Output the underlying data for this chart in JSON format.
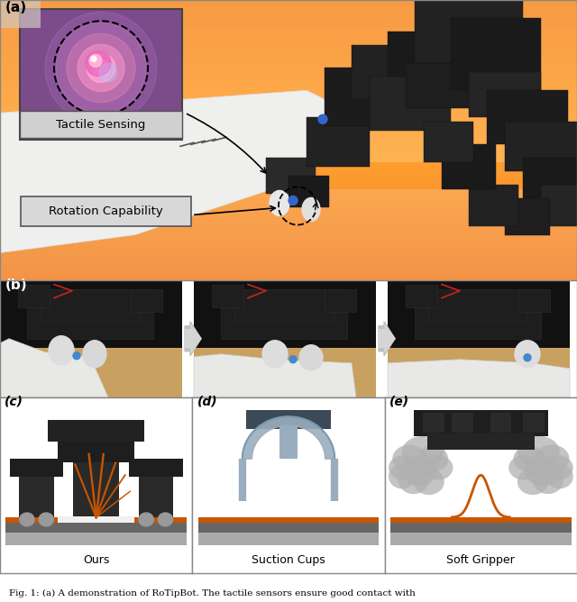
{
  "fig_width": 6.4,
  "fig_height": 6.68,
  "dpi": 100,
  "caption": "Fig. 1: (a) A demonstration of RoTipBot. The tactile sensors ensure good contact with",
  "panel_labels": [
    "(a)",
    "(b)",
    "(c)",
    "(d)",
    "(e)"
  ],
  "panel_c_label": "Ours",
  "panel_d_label": "Suction Cups",
  "panel_e_label": "Soft Gripper",
  "tactile_label": "Tactile Sensing",
  "rotation_label": "Rotation Capability",
  "orange": "#c85500",
  "dark": "#1a1a1a",
  "dark2": "#2a2a2a",
  "dark3": "#333333",
  "gray1": "#555555",
  "gray2": "#777777",
  "gray3": "#999999",
  "gray4": "#bbbbbb",
  "lightgray": "#cccccc",
  "tan": "#c8a878",
  "tan2": "#b09060",
  "tan3": "#a07850",
  "purple_dark": "#7b4b8a",
  "purple_mid": "#9b6baa",
  "pink1": "#e080c0",
  "pink2": "#f0a0d0",
  "white": "#f5f5f5",
  "black": "#000000",
  "photo_b_bg": "#1a1a1a",
  "photo_b_tan": "#c8a060",
  "arrow_color": "#c8c8c8",
  "suction_gray": "#9aadbe",
  "suction_dark": "#3a4a58",
  "panel_a_top": "#c8bab0",
  "panel_a_bot": "#c0a888"
}
